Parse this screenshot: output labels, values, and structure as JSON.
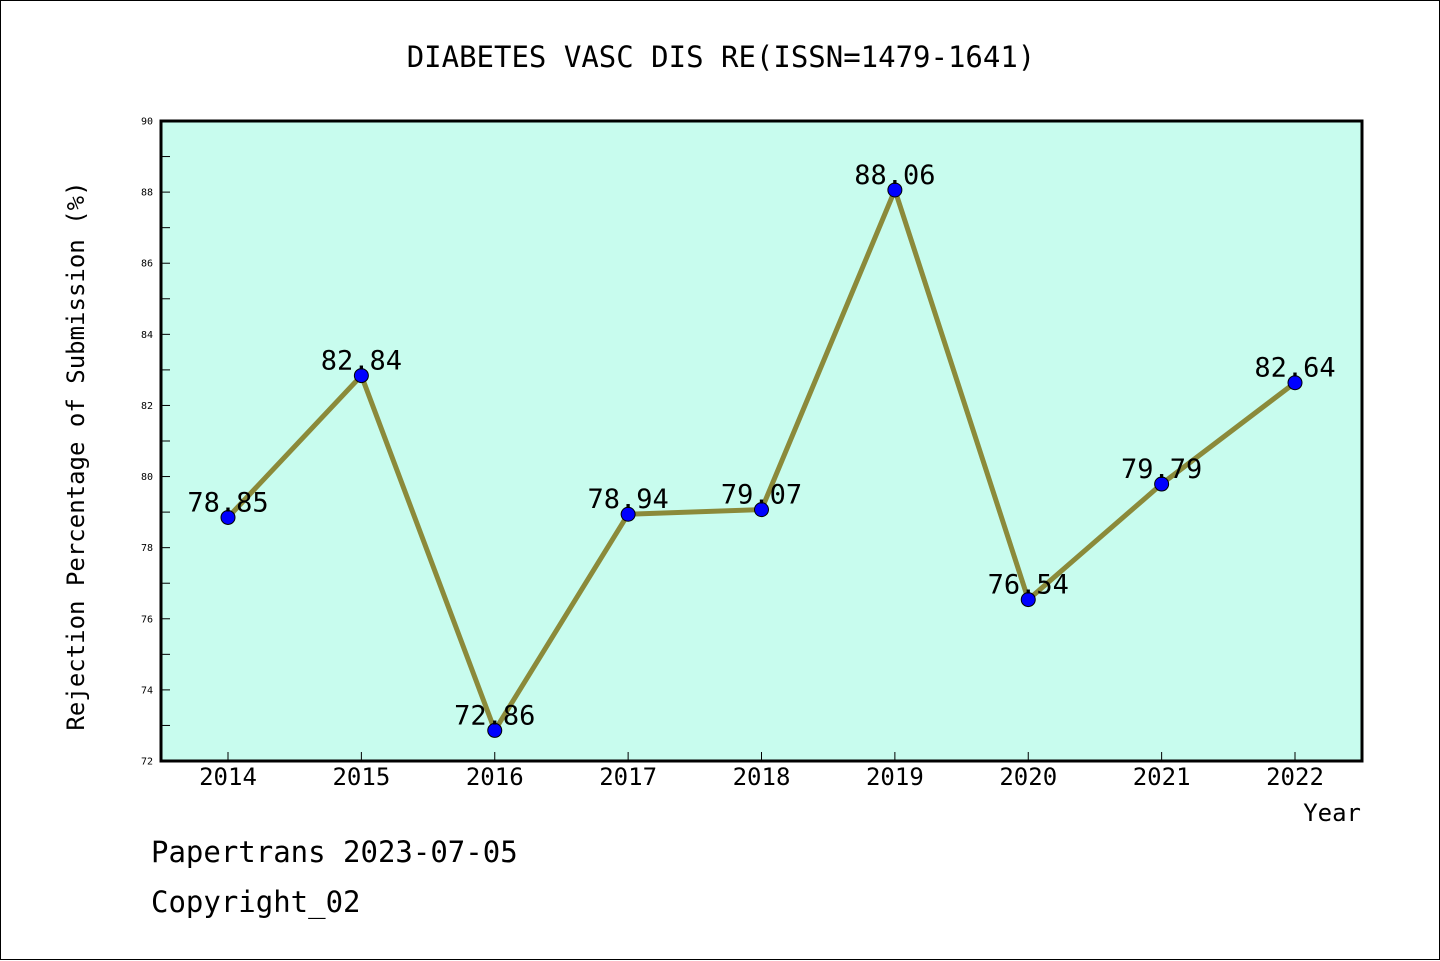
{
  "chart_data": {
    "type": "line",
    "title": "DIABETES VASC DIS RE(ISSN=1479-1641)",
    "xlabel": "Year",
    "ylabel": "Rejection Percentage of Submission (%)",
    "categories": [
      "2014",
      "2015",
      "2016",
      "2017",
      "2018",
      "2019",
      "2020",
      "2021",
      "2022"
    ],
    "series": [
      {
        "values": [
          78.85,
          82.84,
          72.86,
          78.94,
          79.07,
          88.06,
          76.54,
          79.79,
          82.64
        ],
        "labels": [
          "78.85",
          "82.84",
          "72.86",
          "78.94",
          "79.07",
          "88.06",
          "76.54",
          "79.79",
          "82.64"
        ]
      }
    ],
    "ylim": [
      72,
      90
    ],
    "yticks": [
      72,
      74,
      76,
      78,
      80,
      82,
      84,
      86,
      88,
      90
    ],
    "grid": false,
    "colors": {
      "plot_background": "#c8fcee",
      "line": "#8b8a3a",
      "marker": "#0000ff"
    }
  },
  "footer": {
    "line1": "Papertrans 2023-07-05",
    "line2": "Copyright_02"
  }
}
